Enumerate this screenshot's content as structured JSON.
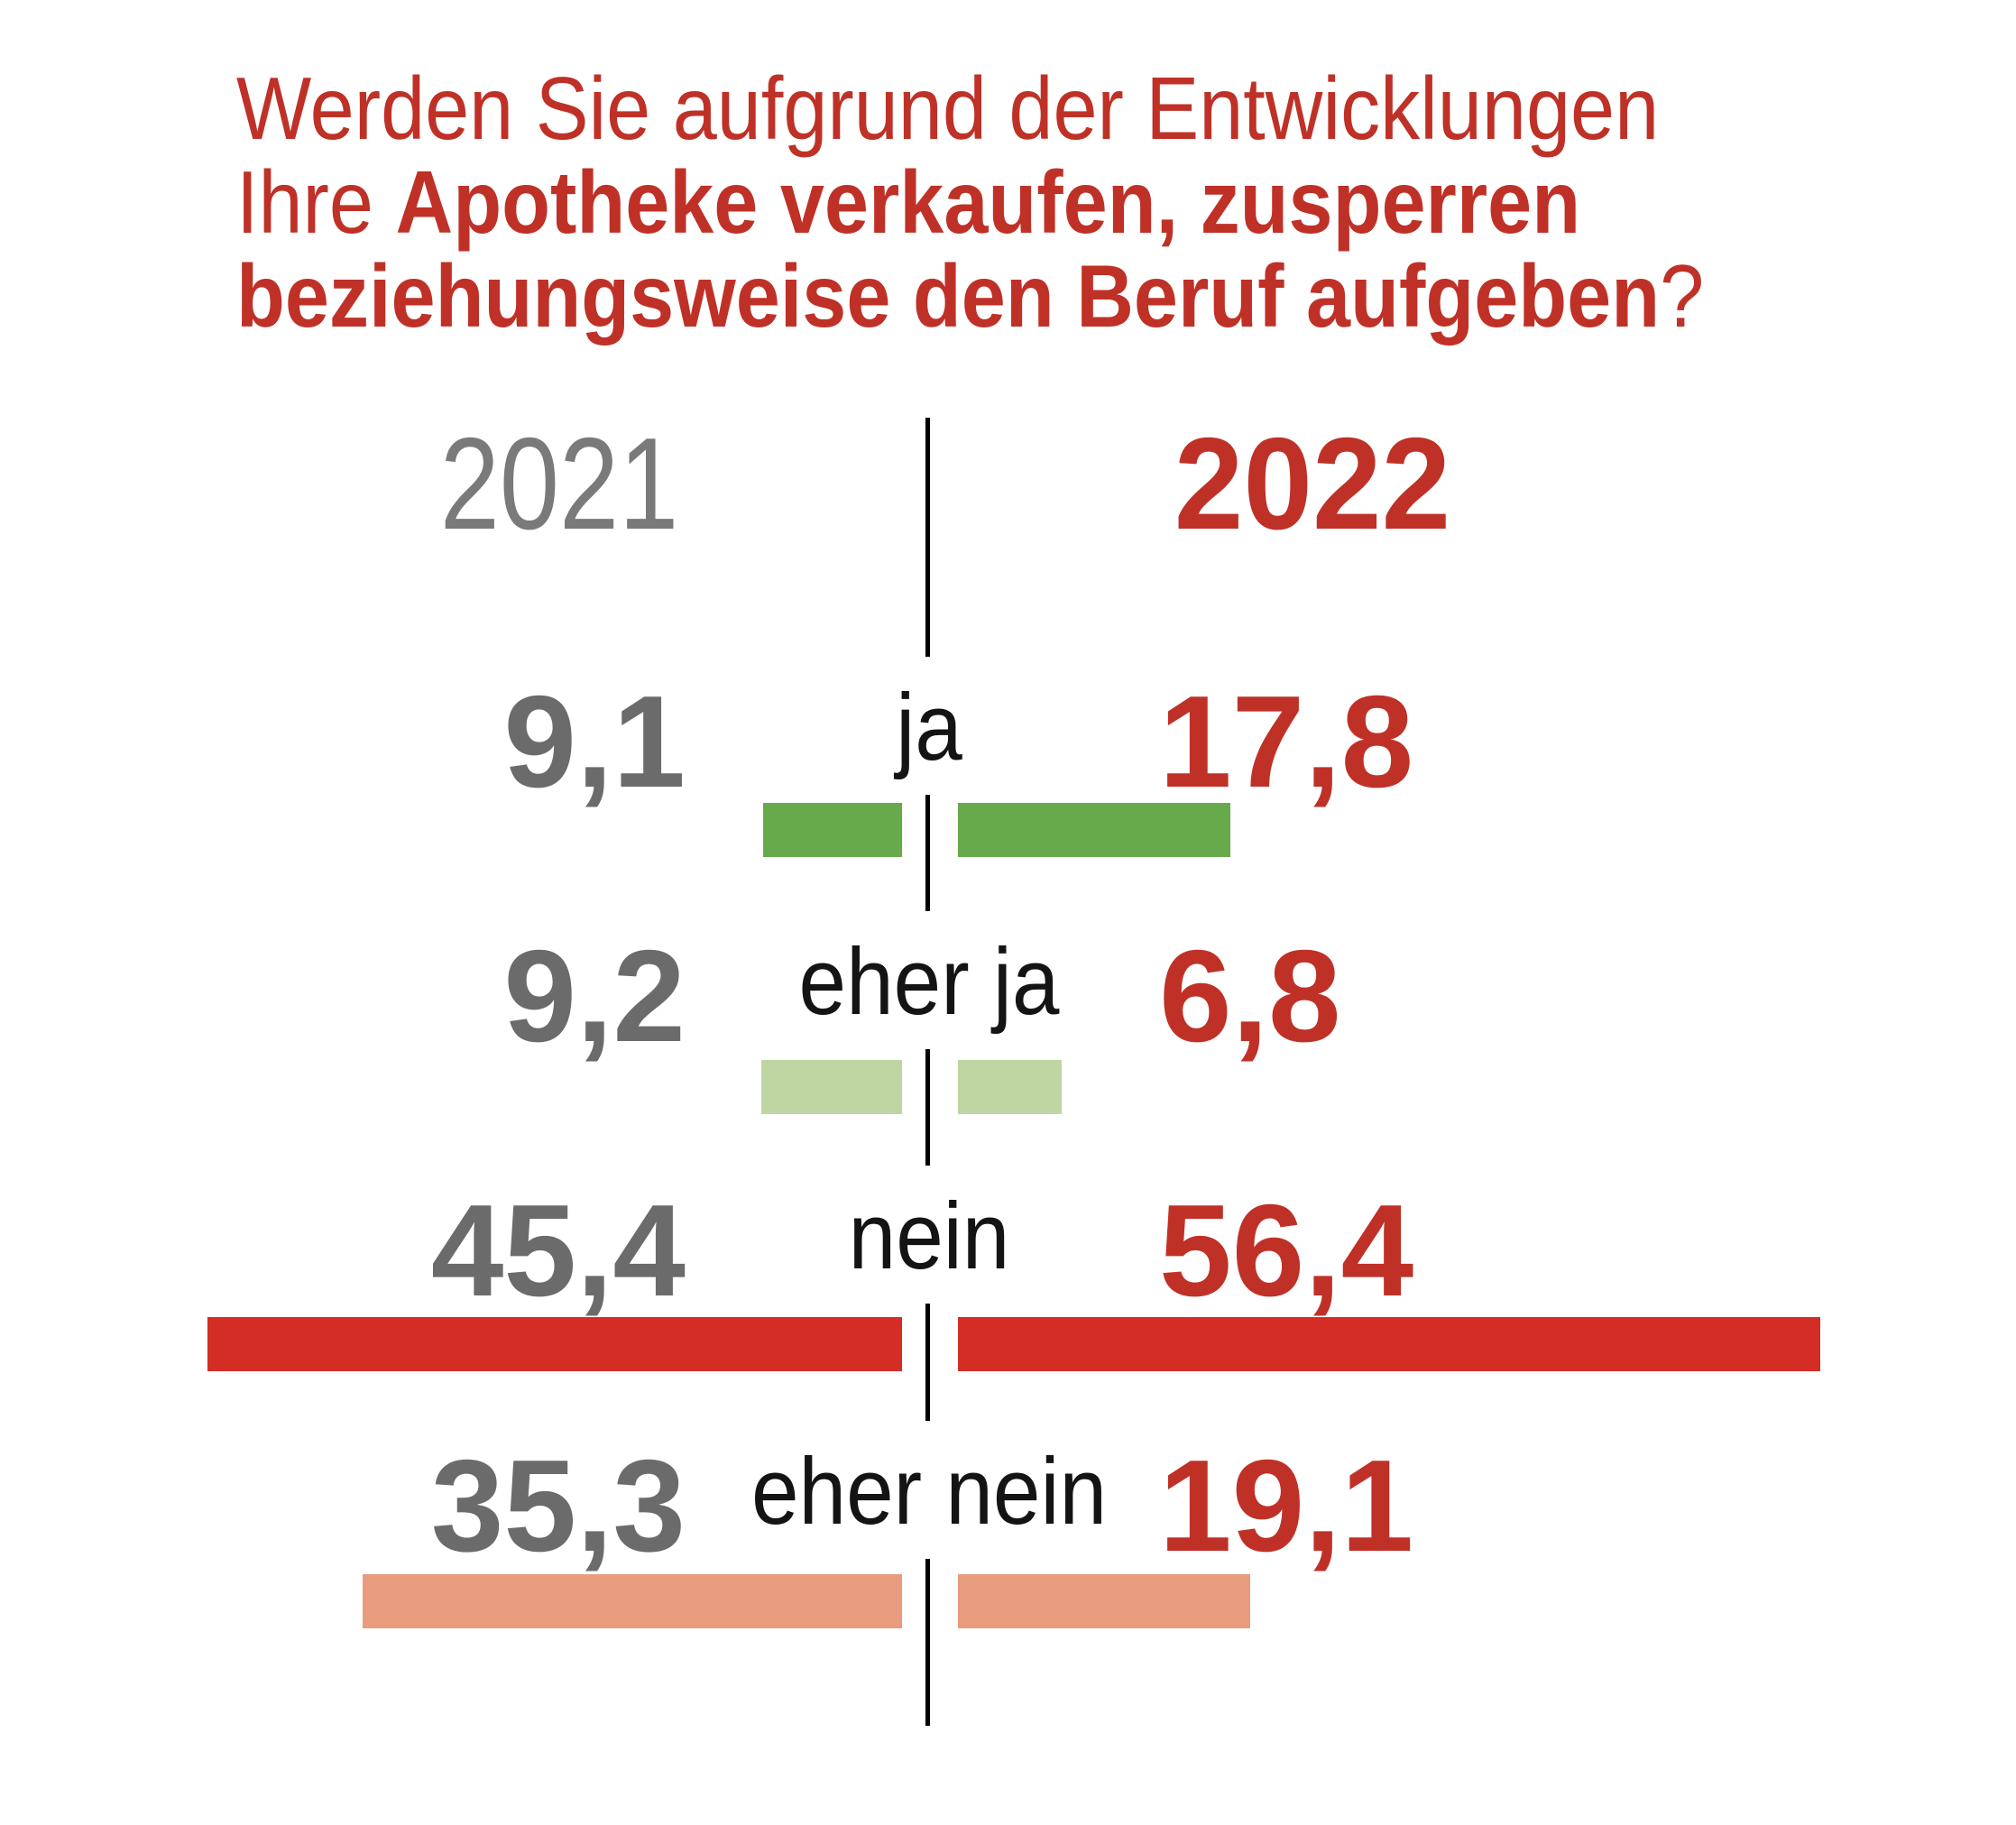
{
  "title": {
    "line1": "Werden Sie aufgrund der Entwicklungen",
    "line2_regular": "Ihre ",
    "line2_bold": "Apotheke verkaufen, zusperren",
    "line3_bold": "beziehungsweise den Beruf aufgeben",
    "line3_suffix": "?"
  },
  "legend": {
    "left_year": "2021",
    "right_year": "2022"
  },
  "colors": {
    "title_red": "#bf3127",
    "value_red": "#bf3127",
    "value_gray": "#6b6b6b",
    "year_gray": "#7a7a7a",
    "label_black": "#141414",
    "line_black": "#000000",
    "background": "#ffffff"
  },
  "chart_data": {
    "type": "bar",
    "variant": "diverging-horizontal-comparison",
    "title": "Werden Sie aufgrund der Entwicklungen Ihre Apotheke verkaufen, zusperren beziehungsweise den Beruf aufgeben?",
    "unit": "percent",
    "categories": [
      "ja",
      "eher ja",
      "nein",
      "eher nein"
    ],
    "series": [
      {
        "name": "2021",
        "side": "left",
        "values": [
          9.1,
          9.2,
          45.4,
          35.3
        ],
        "labels": [
          "9,1",
          "9,2",
          "45,4",
          "35,3"
        ]
      },
      {
        "name": "2022",
        "side": "right",
        "values": [
          17.8,
          6.8,
          56.4,
          19.1
        ],
        "labels": [
          "17,8",
          "6,8",
          "56,4",
          "19,1"
        ]
      }
    ],
    "row_bar_colors": [
      "#66aa4b",
      "#bed6a2",
      "#d32d26",
      "#e89b7d"
    ],
    "axis": {
      "center_divider": true,
      "value_axis_hidden": true
    },
    "legend_position": "top"
  }
}
